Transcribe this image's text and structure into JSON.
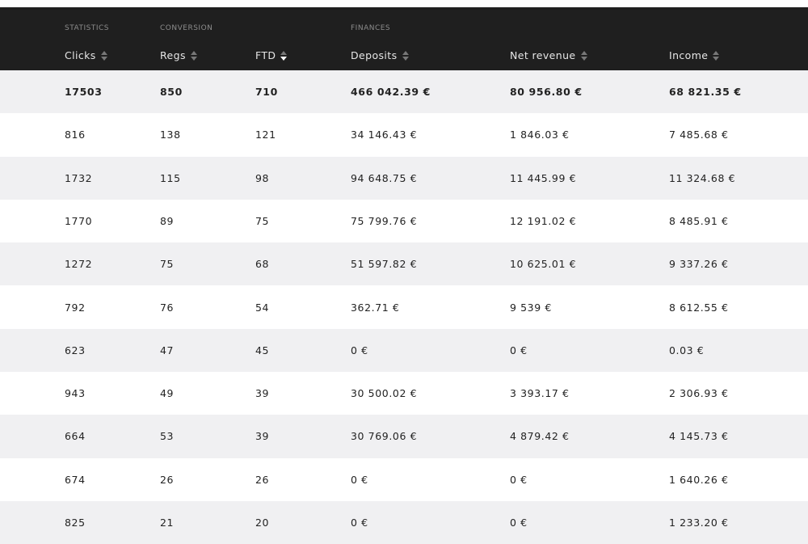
{
  "table": {
    "groups": [
      {
        "label": "STATISTICS",
        "column": 0
      },
      {
        "label": "CONVERSION",
        "column": 1
      },
      {
        "label": "FINANCES",
        "column": 3
      }
    ],
    "columns": [
      "Clicks",
      "Regs",
      "FTD",
      "Deposits",
      "Net revenue",
      "Income"
    ],
    "sorted_column": 2,
    "totals": [
      "17503",
      "850",
      "710",
      "466 042.39 €",
      "80 956.80 €",
      "68 821.35 €"
    ],
    "rows": [
      [
        "816",
        "138",
        "121",
        "34 146.43 €",
        "1 846.03 €",
        "7 485.68 €"
      ],
      [
        "1732",
        "115",
        "98",
        "94 648.75 €",
        "11 445.99 €",
        "11 324.68 €"
      ],
      [
        "1770",
        "89",
        "75",
        "75 799.76 €",
        "12 191.02 €",
        "8 485.91 €"
      ],
      [
        "1272",
        "75",
        "68",
        "51 597.82 €",
        "10 625.01 €",
        "9 337.26 €"
      ],
      [
        "792",
        "76",
        "54",
        "362.71 €",
        "9 539 €",
        "8 612.55 €"
      ],
      [
        "623",
        "47",
        "45",
        "0 €",
        "0 €",
        "0.03 €"
      ],
      [
        "943",
        "49",
        "39",
        "30 500.02 €",
        "3 393.17 €",
        "2 306.93 €"
      ],
      [
        "664",
        "53",
        "39",
        "30 769.06 €",
        "4 879.42 €",
        "4 145.73 €"
      ],
      [
        "674",
        "26",
        "26",
        "0 €",
        "0 €",
        "1 640.26 €"
      ],
      [
        "825",
        "21",
        "20",
        "0 €",
        "0 €",
        "1 233.20 €"
      ]
    ]
  }
}
